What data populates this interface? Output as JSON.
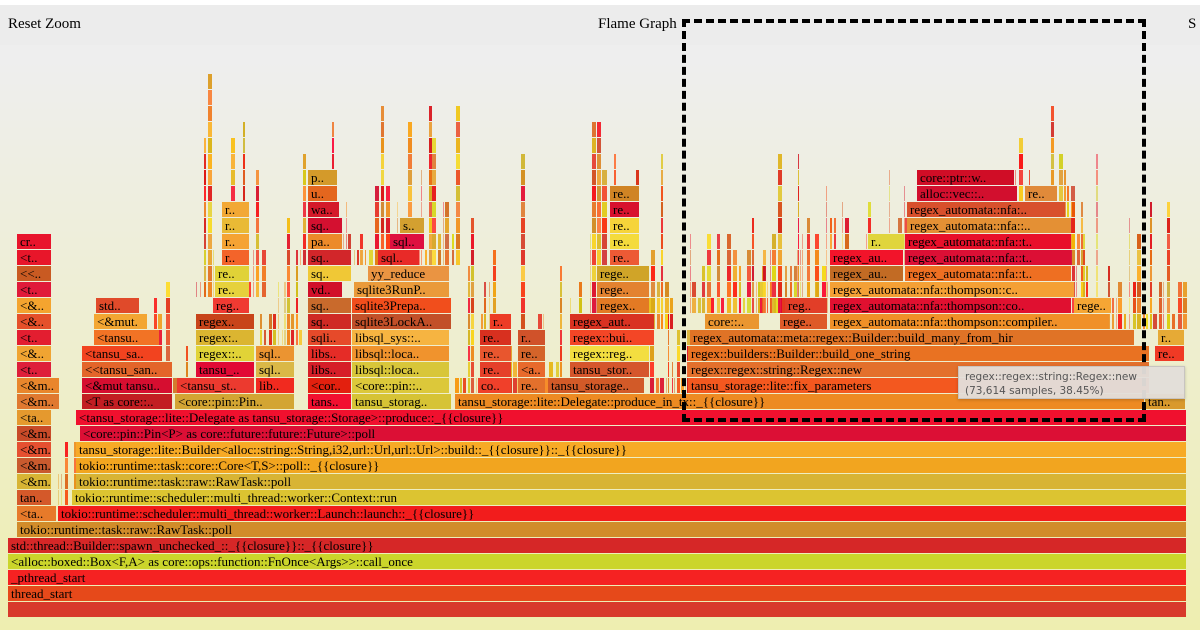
{
  "header": {
    "reset_zoom": "Reset Zoom",
    "title": "Flame Graph",
    "search": "S"
  },
  "tooltip": {
    "text": "regex::regex::string::Regex::new (73,614 samples, 38.45%)"
  },
  "frames": [
    "",
    "thread_start",
    "_pthread_start",
    "<alloc::boxed::Box<F,A> as core::ops::function::FnOnce<Args>>::call_once",
    "std::thread::Builder::spawn_unchecked_::_{{closure}}::_{{closure}}",
    "tokio::runtime::task::raw::RawTask::poll",
    "<ta..",
    "tokio::runtime::scheduler::multi_thread::worker::Launch::launch::_{{closure}}",
    "tan..",
    "tokio::runtime::scheduler::multi_thread::worker::Context::run",
    "<&m..",
    "tokio::runtime::task::raw::RawTask::poll",
    "<&m..",
    "tokio::runtime::task::core::Core<T,S>::poll::_{{closure}}",
    "<&m..",
    "tansu_storage::lite::Builder<alloc::string::String,i32,url::Url,url::Url>::build::_{{closure}}::_{{closure}}",
    "<&m..",
    "<core::pin::Pin<P> as core::future::future::Future>::poll",
    "<ta..",
    "<tansu_storage::lite::Delegate as tansu_storage::Storage>::produce::_{{closure}}",
    "<&m..",
    "<T as core::..",
    "<core::pin::Pin..",
    "tans..",
    "tansu_storag..",
    "tansu_storage::lite::Delegate::produce_in_tx::_{{closure}}",
    "tan..",
    "<&m..",
    "<&mut tansu..",
    "<tansu_st..",
    "lib..",
    "<cor..",
    "<core::pin::..",
    "co..",
    "re..",
    "tansu_storage..",
    "tansu_storage::lite::fix_parameters",
    "<t..",
    "<<tansu_san..",
    "tansu_..",
    "sql..",
    "libs..",
    "libsql::loca..",
    "re..",
    "<a..",
    "tansu_stor..",
    "regex::regex::string::Regex::new",
    "<&..",
    "<tansu_sa..",
    "regex::..",
    "sql..",
    "libs..",
    "libsql::loca..",
    "re..",
    "re..",
    "regex::reg..",
    "regex::builders::Builder::build_one_string",
    "re..",
    "<t..",
    "<tansu..",
    "regex:..",
    "sqli..",
    "libsql_sys::..",
    "re..",
    "r..",
    "regex::bui..",
    "regex_automata::meta::regex::Builder::build_many_from_hir",
    "r..",
    "<&..",
    "<&mut.",
    "regex..",
    "sq..",
    "sqlite3LockA..",
    "r..",
    "regex_aut..",
    "core::..",
    "rege..",
    "regex_automata::nfa::thompson::compiler..",
    "<&..",
    "std..",
    "reg..",
    "sq..",
    "sqlite3Prepa..",
    "regex..",
    "reg..",
    "regex_automata::nfa::thompson::co..",
    "rege..",
    "<t..",
    "re..",
    "vd..",
    "sqlite3RunP..",
    "rege..",
    "regex_automata::nfa::thompson::c..",
    "<<..",
    "re..",
    "sq..",
    "yy_reduce",
    "rege..",
    "regex_au..",
    "regex_automata::nfa::t..",
    "<t..",
    "r..",
    "sq..",
    "sql..",
    "re..",
    "regex_au..",
    "regex_automata::nfa::t..",
    "cr..",
    "r..",
    "pa..",
    "sql..",
    "re..",
    "r..",
    "regex_automata::nfa::t..",
    "r..",
    "sq..",
    "s..",
    "re..",
    "regex_automata::nfa::..",
    "r..",
    "wa..",
    "re..",
    "regex_automata::nfa:..",
    "u..",
    "re..",
    "alloc::vec::..",
    "re..",
    "p..",
    "core::ptr::w.."
  ]
}
